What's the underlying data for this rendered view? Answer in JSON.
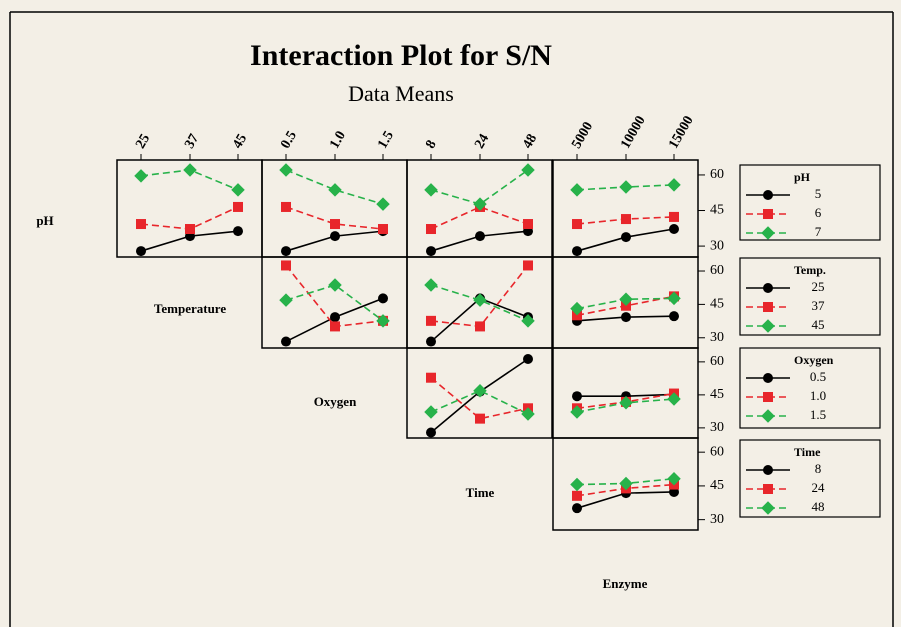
{
  "chart_data": {
    "type": "interaction",
    "title": "Interaction Plot for S/N",
    "subtitle": "Data Means",
    "colors": [
      "#000000",
      "#e8262b",
      "#27b24a"
    ],
    "markers": [
      "circle",
      "square",
      "diamond"
    ],
    "dashed": [
      false,
      true,
      true
    ],
    "ylim": [
      25.4,
      66.3
    ],
    "yticks": [
      30,
      45,
      60
    ],
    "factors": [
      {
        "label": "pH",
        "legend_title": "pH",
        "levels": [
          "5",
          "6",
          "7"
        ]
      },
      {
        "label": "Temperature",
        "legend_title": "Temp.",
        "levels": [
          "25",
          "37",
          "45"
        ]
      },
      {
        "label": "Oxygen",
        "legend_title": "Oxygen",
        "levels": [
          "0.5",
          "1.0",
          "1.5"
        ]
      },
      {
        "label": "Time",
        "legend_title": "Time",
        "levels": [
          "8",
          "24",
          "48"
        ]
      },
      {
        "label": "Enzyme",
        "levels": [
          "5000",
          "10000",
          "15000"
        ]
      }
    ],
    "panels": [
      [
        {
          "series": [
            {
              "values": [
                27.9,
                34.2,
                36.3
              ]
            },
            {
              "values": [
                39.3,
                37.2,
                46.5
              ]
            },
            {
              "values": [
                59.6,
                62.1,
                53.7
              ]
            }
          ]
        },
        {
          "series": [
            {
              "values": [
                27.9,
                34.2,
                36.3
              ]
            },
            {
              "values": [
                46.5,
                39.3,
                37.2
              ]
            },
            {
              "values": [
                62.1,
                53.7,
                47.7
              ]
            }
          ]
        },
        {
          "series": [
            {
              "values": [
                27.9,
                34.2,
                36.3
              ]
            },
            {
              "values": [
                37.2,
                46.5,
                39.3
              ]
            },
            {
              "values": [
                53.7,
                47.7,
                62.1
              ]
            }
          ]
        },
        {
          "series": [
            {
              "values": [
                27.9,
                33.8,
                37.2
              ]
            },
            {
              "values": [
                39.3,
                41.4,
                42.3
              ]
            },
            {
              "values": [
                53.7,
                54.9,
                55.8
              ]
            }
          ]
        }
      ],
      [
        {
          "series": [
            {
              "values": [
                28.3,
                39.3,
                47.7
              ]
            },
            {
              "values": [
                62.5,
                35.1,
                37.6
              ]
            },
            {
              "values": [
                46.9,
                53.7,
                37.6
              ]
            }
          ]
        },
        {
          "series": [
            {
              "values": [
                28.3,
                47.7,
                39.3
              ]
            },
            {
              "values": [
                37.6,
                35.1,
                62.5
              ]
            },
            {
              "values": [
                53.7,
                46.9,
                37.6
              ]
            }
          ]
        },
        {
          "series": [
            {
              "values": [
                37.6,
                39.3,
                39.7
              ]
            },
            {
              "values": [
                40.1,
                44.4,
                48.6
              ]
            },
            {
              "values": [
                43.1,
                47.3,
                47.7
              ]
            }
          ]
        }
      ],
      [
        {
          "series": [
            {
              "values": [
                27.9,
                46.5,
                61.3
              ]
            },
            {
              "values": [
                52.8,
                34.2,
                38.9
              ]
            },
            {
              "values": [
                37.2,
                46.9,
                36.3
              ]
            }
          ]
        },
        {
          "series": [
            {
              "values": [
                44.4,
                44.4,
                45.2
              ]
            },
            {
              "values": [
                38.9,
                41.8,
                45.6
              ]
            },
            {
              "values": [
                37.2,
                41.4,
                43.1
              ]
            }
          ]
        }
      ],
      [
        {
          "series": [
            {
              "values": [
                35.1,
                41.8,
                42.3
              ]
            },
            {
              "values": [
                40.6,
                43.9,
                45.6
              ]
            },
            {
              "values": [
                45.6,
                46.1,
                48.2
              ]
            }
          ]
        }
      ]
    ]
  }
}
